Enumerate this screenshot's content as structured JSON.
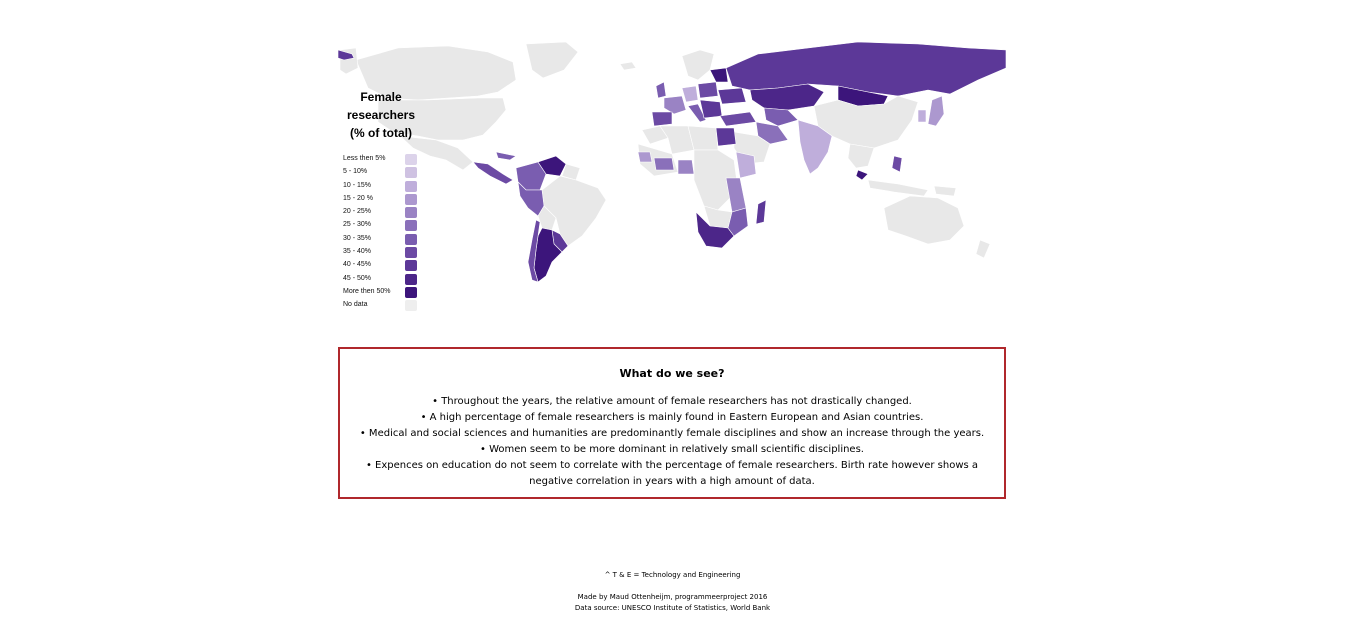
{
  "legend": {
    "title_lines": [
      "Female",
      "researchers",
      "(% of total)"
    ],
    "items": [
      {
        "label": "Less then 5%",
        "color": "#dcd3ea"
      },
      {
        "label": "5 - 10%",
        "color": "#cfc2e2"
      },
      {
        "label": "10 - 15%",
        "color": "#bfaedb"
      },
      {
        "label": "15 - 20 %",
        "color": "#ac98cf"
      },
      {
        "label": "20 - 25%",
        "color": "#9a83c4"
      },
      {
        "label": "25 - 30%",
        "color": "#8a70ba"
      },
      {
        "label": "30 - 35%",
        "color": "#7a5db0"
      },
      {
        "label": "35 - 40%",
        "color": "#6c4aa4"
      },
      {
        "label": "40 - 45%",
        "color": "#5c3898"
      },
      {
        "label": "45 - 50%",
        "color": "#4c2689"
      },
      {
        "label": "More then 50%",
        "color": "#3c157b"
      },
      {
        "label": "No data",
        "color": "#eeeeee"
      }
    ]
  },
  "map": {
    "no_data_color": "#e8e8e8",
    "border_color": "#ffffff"
  },
  "info": {
    "title": "What do we see?",
    "bullets": [
      "• Throughout the years, the relative amount of female researchers has not drastically changed.",
      "• A high percentage of female researchers is mainly found in Eastern European and Asian countries.",
      "• Medical and social sciences and humanities are predominantly female disciplines and show an increase through the years.",
      "• Women seem to be more dominant in relatively small scientific disciplines.",
      "• Expences on education do not seem to correlate with the percentage of female researchers. Birth rate however shows a negative correlation in years with a high amount of data."
    ],
    "border_color": "#b0282c"
  },
  "footer": {
    "note": "^ T & E = Technology and Engineering",
    "credit": "Made by Maud Ottenheijm, programmeerproject 2016",
    "source": "Data source: UNESCO Institute of Statistics, World Bank"
  }
}
